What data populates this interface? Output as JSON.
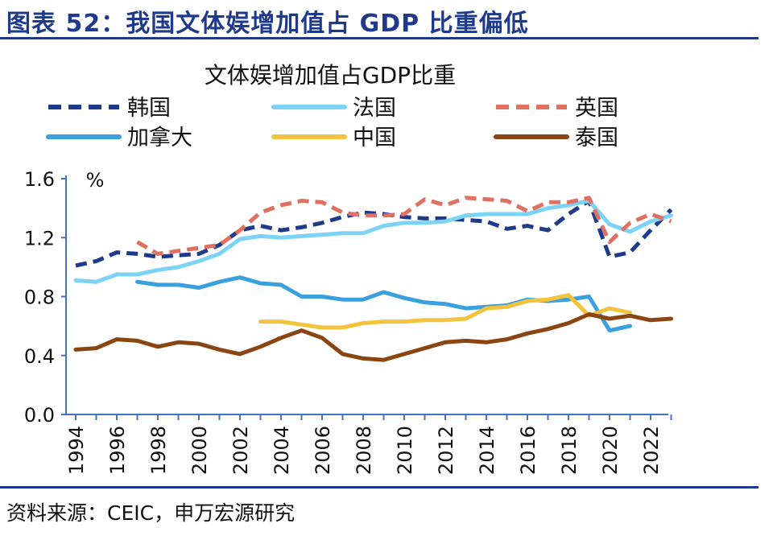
{
  "header": {
    "title": "图表 52：我国文体娱增加值占 GDP 比重偏低"
  },
  "footer": {
    "source": "资料来源：CEIC，申万宏源研究"
  },
  "colors": {
    "brand": "#1f3a8a",
    "axis": "#4472c4"
  },
  "chart_data": {
    "type": "line",
    "title": "文体娱增加值占GDP比重",
    "ylabel": "%",
    "xlabel": "",
    "ylim": [
      0,
      1.6
    ],
    "xlim": [
      1994,
      2023
    ],
    "yticks": [
      0.0,
      0.4,
      0.8,
      1.2,
      1.6
    ],
    "ytick_labels": [
      "0.0",
      "0.4",
      "0.8",
      "1.2",
      "1.6"
    ],
    "xticks": [
      1994,
      1996,
      1998,
      2000,
      2002,
      2004,
      2006,
      2008,
      2010,
      2012,
      2014,
      2016,
      2018,
      2020,
      2022
    ],
    "legend_position": "top",
    "series": [
      {
        "name": "韩国",
        "color": "#1f3a8a",
        "dash": "dashed",
        "x": [
          1994,
          1995,
          1996,
          1997,
          1998,
          1999,
          2000,
          2001,
          2002,
          2003,
          2004,
          2005,
          2006,
          2007,
          2008,
          2009,
          2010,
          2011,
          2012,
          2013,
          2014,
          2015,
          2016,
          2017,
          2018,
          2019,
          2020,
          2021,
          2022,
          2023
        ],
        "y": [
          1.01,
          1.04,
          1.1,
          1.09,
          1.07,
          1.08,
          1.09,
          1.15,
          1.25,
          1.28,
          1.25,
          1.27,
          1.3,
          1.34,
          1.37,
          1.36,
          1.34,
          1.33,
          1.33,
          1.32,
          1.31,
          1.26,
          1.28,
          1.25,
          1.36,
          1.45,
          1.07,
          1.1,
          1.25,
          1.39
        ]
      },
      {
        "name": "法国",
        "color": "#7dd3f5",
        "dash": "solid",
        "x": [
          1994,
          1995,
          1996,
          1997,
          1998,
          1999,
          2000,
          2001,
          2002,
          2003,
          2004,
          2005,
          2006,
          2007,
          2008,
          2009,
          2010,
          2011,
          2012,
          2013,
          2014,
          2015,
          2016,
          2017,
          2018,
          2019,
          2020,
          2021,
          2022,
          2023
        ],
        "y": [
          0.91,
          0.9,
          0.95,
          0.95,
          0.98,
          1.0,
          1.04,
          1.09,
          1.19,
          1.21,
          1.2,
          1.21,
          1.22,
          1.23,
          1.23,
          1.28,
          1.3,
          1.3,
          1.31,
          1.35,
          1.36,
          1.36,
          1.36,
          1.4,
          1.42,
          1.45,
          1.29,
          1.24,
          1.31,
          1.35
        ]
      },
      {
        "name": "英国",
        "color": "#e07060",
        "dash": "dashed",
        "x": [
          1997,
          1998,
          1999,
          2000,
          2001,
          2002,
          2003,
          2004,
          2005,
          2006,
          2007,
          2008,
          2009,
          2010,
          2011,
          2012,
          2013,
          2014,
          2015,
          2016,
          2017,
          2018,
          2019,
          2020,
          2021,
          2022,
          2023
        ],
        "y": [
          1.17,
          1.09,
          1.11,
          1.13,
          1.15,
          1.25,
          1.37,
          1.42,
          1.45,
          1.44,
          1.37,
          1.35,
          1.35,
          1.36,
          1.46,
          1.42,
          1.47,
          1.46,
          1.45,
          1.38,
          1.44,
          1.44,
          1.47,
          1.17,
          1.3,
          1.36,
          1.31
        ]
      },
      {
        "name": "加拿大",
        "color": "#3ba0de",
        "dash": "solid",
        "x": [
          1997,
          1998,
          1999,
          2000,
          2001,
          2002,
          2003,
          2004,
          2005,
          2006,
          2007,
          2008,
          2009,
          2010,
          2011,
          2012,
          2013,
          2014,
          2015,
          2016,
          2017,
          2018,
          2019,
          2020,
          2021
        ],
        "y": [
          0.9,
          0.88,
          0.88,
          0.86,
          0.9,
          0.93,
          0.89,
          0.88,
          0.8,
          0.8,
          0.78,
          0.78,
          0.83,
          0.79,
          0.76,
          0.75,
          0.72,
          0.73,
          0.74,
          0.78,
          0.77,
          0.78,
          0.8,
          0.57,
          0.6
        ]
      },
      {
        "name": "中国",
        "color": "#f2c33d",
        "dash": "solid",
        "x": [
          2003,
          2004,
          2005,
          2006,
          2007,
          2008,
          2009,
          2010,
          2011,
          2012,
          2013,
          2014,
          2015,
          2016,
          2017,
          2018,
          2019,
          2020,
          2021
        ],
        "y": [
          0.63,
          0.63,
          0.61,
          0.59,
          0.59,
          0.62,
          0.63,
          0.63,
          0.64,
          0.64,
          0.65,
          0.72,
          0.73,
          0.77,
          0.78,
          0.81,
          0.67,
          0.72,
          0.69
        ]
      },
      {
        "name": "泰国",
        "color": "#8b4513",
        "dash": "solid",
        "x": [
          1994,
          1995,
          1996,
          1997,
          1998,
          1999,
          2000,
          2001,
          2002,
          2003,
          2004,
          2005,
          2006,
          2007,
          2008,
          2009,
          2010,
          2011,
          2012,
          2013,
          2014,
          2015,
          2016,
          2017,
          2018,
          2019,
          2020,
          2021,
          2022,
          2023
        ],
        "y": [
          0.44,
          0.45,
          0.51,
          0.5,
          0.46,
          0.49,
          0.48,
          0.44,
          0.41,
          0.46,
          0.52,
          0.57,
          0.52,
          0.41,
          0.38,
          0.37,
          0.41,
          0.45,
          0.49,
          0.5,
          0.49,
          0.51,
          0.55,
          0.58,
          0.62,
          0.68,
          0.65,
          0.67,
          0.64,
          0.65
        ]
      }
    ]
  }
}
